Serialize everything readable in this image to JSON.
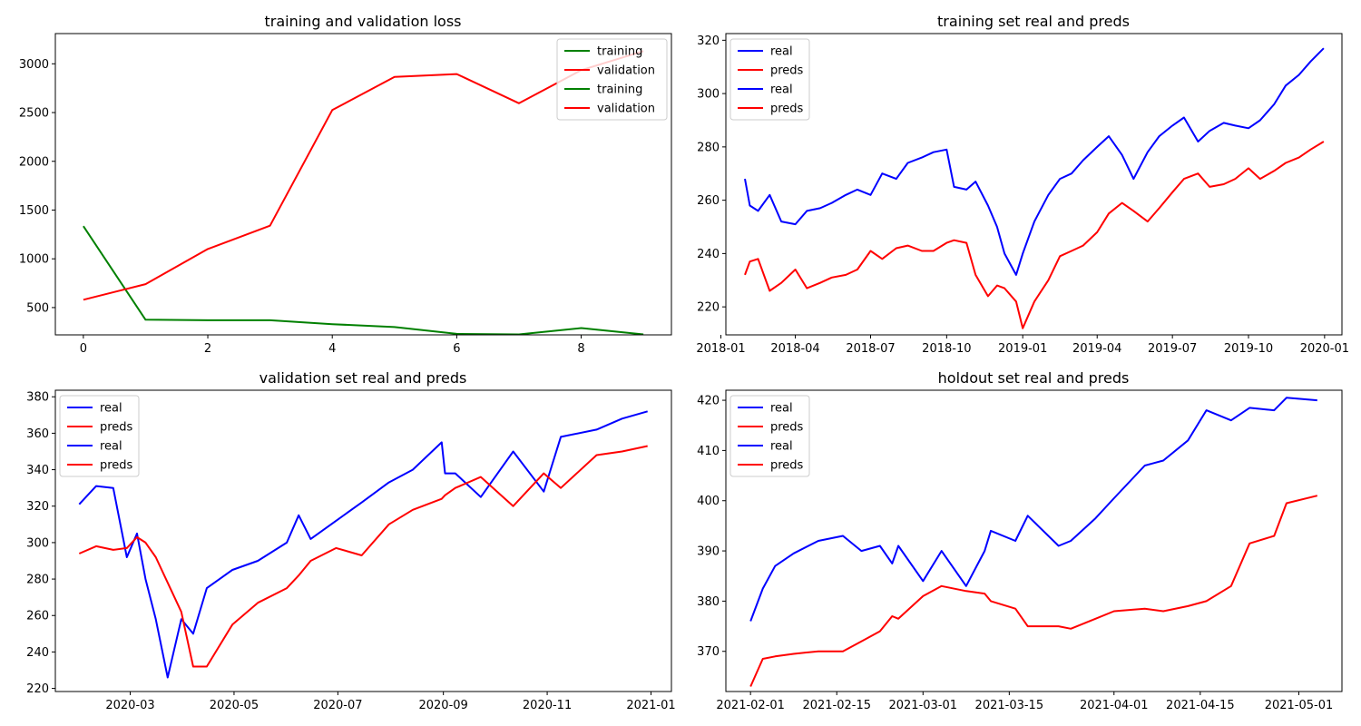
{
  "colors": {
    "training": "#008000",
    "validation": "#ff0000",
    "real": "#0000ff",
    "preds": "#ff0000"
  },
  "chart_data": [
    {
      "type": "line",
      "title": "training and validation loss",
      "xlabel": "",
      "ylabel": "",
      "x": [
        0,
        1,
        2,
        3,
        4,
        5,
        6,
        7,
        8,
        9
      ],
      "xlim": [
        -0.45,
        9.45
      ],
      "ylim": [
        220,
        3310
      ],
      "x_ticks": [
        {
          "v": 0,
          "label": "0"
        },
        {
          "v": 2,
          "label": "2"
        },
        {
          "v": 4,
          "label": "4"
        },
        {
          "v": 6,
          "label": "6"
        },
        {
          "v": 8,
          "label": "8"
        }
      ],
      "y_ticks": [
        {
          "v": 500,
          "label": "500"
        },
        {
          "v": 1000,
          "label": "1000"
        },
        {
          "v": 1500,
          "label": "1500"
        },
        {
          "v": 2000,
          "label": "2000"
        },
        {
          "v": 2500,
          "label": "2500"
        },
        {
          "v": 3000,
          "label": "3000"
        }
      ],
      "legend": {
        "position": "top-right",
        "entries": [
          "training",
          "validation",
          "training",
          "validation"
        ]
      },
      "series": [
        {
          "name": "training",
          "color": "#008000",
          "values": [
            1335,
            375,
            370,
            370,
            330,
            300,
            230,
            225,
            290,
            225
          ]
        },
        {
          "name": "validation",
          "color": "#ff0000",
          "values": [
            580,
            740,
            1100,
            1340,
            2525,
            2865,
            2895,
            2595,
            2935,
            3130
          ]
        }
      ]
    },
    {
      "type": "line",
      "title": "training set real and preds",
      "xlabel": "",
      "ylabel": "",
      "x": [
        "2018-01-30",
        "2018-02-05",
        "2018-02-15",
        "2018-03-01",
        "2018-03-15",
        "2018-04-01",
        "2018-04-15",
        "2018-05-01",
        "2018-05-15",
        "2018-06-01",
        "2018-06-15",
        "2018-07-01",
        "2018-07-15",
        "2018-08-01",
        "2018-08-15",
        "2018-09-01",
        "2018-09-15",
        "2018-10-01",
        "2018-10-10",
        "2018-10-25",
        "2018-11-05",
        "2018-11-20",
        "2018-12-01",
        "2018-12-10",
        "2018-12-24",
        "2019-01-01",
        "2019-01-15",
        "2019-02-01",
        "2019-02-15",
        "2019-03-01",
        "2019-03-15",
        "2019-04-01",
        "2019-04-15",
        "2019-05-01",
        "2019-05-15",
        "2019-06-01",
        "2019-06-15",
        "2019-07-01",
        "2019-07-15",
        "2019-08-01",
        "2019-08-15",
        "2019-09-01",
        "2019-09-15",
        "2019-10-01",
        "2019-10-15",
        "2019-11-01",
        "2019-11-15",
        "2019-12-01",
        "2019-12-15",
        "2019-12-31"
      ],
      "xlim": [
        "2018-01-07",
        "2020-01-22"
      ],
      "ylim": [
        209.5,
        322.5
      ],
      "x_ticks": [
        {
          "v": "2018-01-01",
          "label": "2018-01"
        },
        {
          "v": "2018-04-01",
          "label": "2018-04"
        },
        {
          "v": "2018-07-01",
          "label": "2018-07"
        },
        {
          "v": "2018-10-01",
          "label": "2018-10"
        },
        {
          "v": "2019-01-01",
          "label": "2019-01"
        },
        {
          "v": "2019-04-01",
          "label": "2019-04"
        },
        {
          "v": "2019-07-01",
          "label": "2019-07"
        },
        {
          "v": "2019-10-01",
          "label": "2019-10"
        },
        {
          "v": "2020-01-01",
          "label": "2020-01"
        }
      ],
      "y_ticks": [
        {
          "v": 220,
          "label": "220"
        },
        {
          "v": 240,
          "label": "240"
        },
        {
          "v": 260,
          "label": "260"
        },
        {
          "v": 280,
          "label": "280"
        },
        {
          "v": 300,
          "label": "300"
        },
        {
          "v": 320,
          "label": "320"
        }
      ],
      "legend": {
        "position": "top-left",
        "entries": [
          "real",
          "preds",
          "real",
          "preds"
        ]
      },
      "series": [
        {
          "name": "real",
          "color": "#0000ff",
          "values": [
            268,
            258,
            256,
            262,
            252,
            251,
            256,
            257,
            259,
            262,
            264,
            262,
            270,
            268,
            274,
            276,
            278,
            279,
            265,
            264,
            267,
            258,
            250,
            240,
            232,
            240,
            252,
            262,
            268,
            270,
            275,
            280,
            284,
            277,
            268,
            278,
            284,
            288,
            291,
            282,
            286,
            289,
            288,
            287,
            290,
            296,
            303,
            307,
            312,
            317
          ]
        },
        {
          "name": "preds",
          "color": "#ff0000",
          "values": [
            232,
            237,
            238,
            226,
            229,
            234,
            227,
            229,
            231,
            232,
            234,
            241,
            238,
            242,
            243,
            241,
            241,
            244,
            245,
            244,
            232,
            224,
            228,
            227,
            222,
            212,
            222,
            230,
            239,
            241,
            243,
            248,
            255,
            259,
            256,
            252,
            257,
            263,
            268,
            270,
            265,
            266,
            268,
            272,
            268,
            271,
            274,
            276,
            279,
            282
          ]
        }
      ]
    },
    {
      "type": "line",
      "title": "validation set real and preds",
      "xlabel": "",
      "ylabel": "",
      "x": [
        "2020-01-31",
        "2020-02-10",
        "2020-02-20",
        "2020-02-28",
        "2020-03-05",
        "2020-03-10",
        "2020-03-16",
        "2020-03-23",
        "2020-03-31",
        "2020-04-07",
        "2020-04-15",
        "2020-04-30",
        "2020-05-15",
        "2020-06-01",
        "2020-06-08",
        "2020-06-15",
        "2020-06-30",
        "2020-07-15",
        "2020-07-31",
        "2020-08-14",
        "2020-08-31",
        "2020-09-02",
        "2020-09-08",
        "2020-09-23",
        "2020-10-12",
        "2020-10-30",
        "2020-11-09",
        "2020-11-30",
        "2020-12-15",
        "2020-12-30"
      ],
      "xlim": [
        "2020-01-17",
        "2021-01-13"
      ],
      "ylim": [
        218.3,
        383.6
      ],
      "x_ticks": [
        {
          "v": "2020-03-01",
          "label": "2020-03"
        },
        {
          "v": "2020-05-01",
          "label": "2020-05"
        },
        {
          "v": "2020-07-01",
          "label": "2020-07"
        },
        {
          "v": "2020-09-01",
          "label": "2020-09"
        },
        {
          "v": "2020-11-01",
          "label": "2020-11"
        },
        {
          "v": "2021-01-01",
          "label": "2021-01"
        }
      ],
      "y_ticks": [
        {
          "v": 220,
          "label": "220"
        },
        {
          "v": 240,
          "label": "240"
        },
        {
          "v": 260,
          "label": "260"
        },
        {
          "v": 280,
          "label": "280"
        },
        {
          "v": 300,
          "label": "300"
        },
        {
          "v": 320,
          "label": "320"
        },
        {
          "v": 340,
          "label": "340"
        },
        {
          "v": 360,
          "label": "360"
        },
        {
          "v": 380,
          "label": "380"
        }
      ],
      "legend": {
        "position": "top-left",
        "entries": [
          "real",
          "preds",
          "real",
          "preds"
        ]
      },
      "series": [
        {
          "name": "real",
          "color": "#0000ff",
          "values": [
            321,
            331,
            330,
            292,
            305,
            280,
            258,
            226,
            258,
            250,
            275,
            285,
            290,
            300,
            315,
            302,
            312,
            322,
            333,
            340,
            355,
            338,
            338,
            325,
            350,
            328,
            358,
            362,
            368,
            372
          ]
        },
        {
          "name": "preds",
          "color": "#ff0000",
          "values": [
            294,
            298,
            296,
            297,
            303,
            300,
            292,
            278,
            262,
            232,
            232,
            255,
            267,
            275,
            282,
            290,
            297,
            293,
            310,
            318,
            324,
            326,
            330,
            336,
            320,
            338,
            330,
            348,
            350,
            353
          ]
        }
      ]
    },
    {
      "type": "line",
      "title": "holdout set real and preds",
      "xlabel": "",
      "ylabel": "",
      "x": [
        "2021-02-01",
        "2021-02-03",
        "2021-02-05",
        "2021-02-08",
        "2021-02-12",
        "2021-02-16",
        "2021-02-19",
        "2021-02-22",
        "2021-02-24",
        "2021-02-25",
        "2021-03-01",
        "2021-03-04",
        "2021-03-08",
        "2021-03-11",
        "2021-03-12",
        "2021-03-16",
        "2021-03-18",
        "2021-03-23",
        "2021-03-25",
        "2021-03-29",
        "2021-04-01",
        "2021-04-06",
        "2021-04-09",
        "2021-04-13",
        "2021-04-16",
        "2021-04-20",
        "2021-04-23",
        "2021-04-27",
        "2021-04-29",
        "2021-05-04"
      ],
      "xlim": [
        "2021-01-28",
        "2021-05-08"
      ],
      "ylim": [
        362.0,
        422.0
      ],
      "x_ticks": [
        {
          "v": "2021-02-01",
          "label": "2021-02-01"
        },
        {
          "v": "2021-02-15",
          "label": "2021-02-15"
        },
        {
          "v": "2021-03-01",
          "label": "2021-03-01"
        },
        {
          "v": "2021-03-15",
          "label": "2021-03-15"
        },
        {
          "v": "2021-04-01",
          "label": "2021-04-01"
        },
        {
          "v": "2021-04-15",
          "label": "2021-04-15"
        },
        {
          "v": "2021-05-01",
          "label": "2021-05-01"
        }
      ],
      "y_ticks": [
        {
          "v": 370,
          "label": "370"
        },
        {
          "v": 380,
          "label": "380"
        },
        {
          "v": 390,
          "label": "390"
        },
        {
          "v": 400,
          "label": "400"
        },
        {
          "v": 410,
          "label": "410"
        },
        {
          "v": 420,
          "label": "420"
        }
      ],
      "legend": {
        "position": "top-left",
        "entries": [
          "real",
          "preds",
          "real",
          "preds"
        ]
      },
      "series": [
        {
          "name": "real",
          "color": "#0000ff",
          "values": [
            376,
            382.5,
            387,
            389.5,
            392,
            393,
            390,
            391,
            387.5,
            391,
            384,
            390,
            383,
            390,
            394,
            392,
            397,
            391,
            392,
            396.5,
            400.5,
            407,
            408,
            412,
            418,
            416,
            418.5,
            418,
            420.5,
            420
          ]
        },
        {
          "name": "preds",
          "color": "#ff0000",
          "values": [
            363,
            368.5,
            369,
            369.5,
            370,
            370,
            372,
            374,
            377,
            376.5,
            381,
            383,
            382,
            381.5,
            380,
            378.5,
            375,
            375,
            374.5,
            376.5,
            378,
            378.5,
            378,
            379,
            380,
            383,
            391.5,
            393,
            399.5,
            401
          ]
        }
      ]
    }
  ]
}
